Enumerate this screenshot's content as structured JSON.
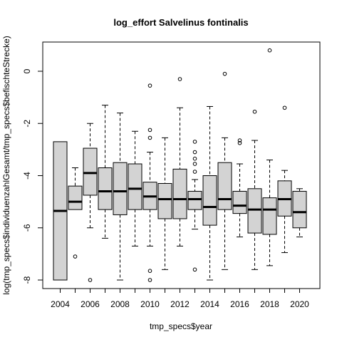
{
  "chart_data": {
    "type": "boxplot",
    "title": "log_effort Salvelinus fontinalis",
    "xlabel": "tmp_specs$year",
    "ylabel": "log(tmp_specs$individuenzahlGesamt/tmp_specs$befischteStrecke)",
    "ylim": [
      -8.4,
      1.1
    ],
    "y_ticks": [
      0,
      -2,
      -4,
      -6,
      -8
    ],
    "x_tick_labels": [
      "2004",
      "2006",
      "2008",
      "2010",
      "2012",
      "2014",
      "2016",
      "2018",
      "2020"
    ],
    "grid": false,
    "box_fill": "#d3d3d3",
    "categories": [
      "2004",
      "2005",
      "2006",
      "2007",
      "2008",
      "2009",
      "2010",
      "2011",
      "2012",
      "2013",
      "2014",
      "2015",
      "2016",
      "2017",
      "2018",
      "2019",
      "2020"
    ],
    "boxes": [
      {
        "year": "2004",
        "lower_whisker": -8.0,
        "q1": -8.0,
        "median": -5.35,
        "q3": -2.7,
        "upper_whisker": -2.7,
        "outliers": []
      },
      {
        "year": "2005",
        "lower_whisker": -5.3,
        "q1": -5.3,
        "median": -5.0,
        "q3": -4.4,
        "upper_whisker": -3.7,
        "outliers": [
          -7.1
        ]
      },
      {
        "year": "2006",
        "lower_whisker": -6.0,
        "q1": -4.75,
        "median": -3.9,
        "q3": -2.95,
        "upper_whisker": -2.0,
        "outliers": [
          -8.0
        ]
      },
      {
        "year": "2007",
        "lower_whisker": -6.4,
        "q1": -5.3,
        "median": -4.6,
        "q3": -3.7,
        "upper_whisker": -1.3,
        "outliers": []
      },
      {
        "year": "2008",
        "lower_whisker": -8.0,
        "q1": -5.5,
        "median": -4.6,
        "q3": -3.5,
        "upper_whisker": -1.6,
        "outliers": []
      },
      {
        "year": "2009",
        "lower_whisker": -6.7,
        "q1": -5.3,
        "median": -4.5,
        "q3": -3.55,
        "upper_whisker": -2.3,
        "outliers": []
      },
      {
        "year": "2010",
        "lower_whisker": -6.7,
        "q1": -5.3,
        "median": -4.8,
        "q3": -4.25,
        "upper_whisker": -3.1,
        "outliers": [
          -0.55,
          -2.25,
          -2.55,
          -7.65,
          -8.0
        ]
      },
      {
        "year": "2011",
        "lower_whisker": -7.6,
        "q1": -5.65,
        "median": -4.9,
        "q3": -4.3,
        "upper_whisker": -2.55,
        "outliers": []
      },
      {
        "year": "2012",
        "lower_whisker": -6.7,
        "q1": -5.65,
        "median": -4.9,
        "q3": -3.75,
        "upper_whisker": -1.4,
        "outliers": [
          -0.3
        ]
      },
      {
        "year": "2013",
        "lower_whisker": -6.05,
        "q1": -5.3,
        "median": -4.9,
        "q3": -4.6,
        "upper_whisker": -4.15,
        "outliers": [
          -2.7,
          -3.1,
          -3.35,
          -3.55,
          -3.85,
          -7.6
        ]
      },
      {
        "year": "2014",
        "lower_whisker": -8.0,
        "q1": -5.9,
        "median": -5.2,
        "q3": -4.0,
        "upper_whisker": -1.35,
        "outliers": []
      },
      {
        "year": "2015",
        "lower_whisker": -7.6,
        "q1": -5.3,
        "median": -4.9,
        "q3": -3.5,
        "upper_whisker": -2.55,
        "outliers": [
          -0.1
        ]
      },
      {
        "year": "2016",
        "lower_whisker": -6.35,
        "q1": -5.45,
        "median": -5.15,
        "q3": -4.6,
        "upper_whisker": -3.55,
        "outliers": [
          -2.65,
          -2.75
        ]
      },
      {
        "year": "2017",
        "lower_whisker": -7.6,
        "q1": -6.2,
        "median": -5.3,
        "q3": -4.5,
        "upper_whisker": -2.65,
        "outliers": [
          -1.55
        ]
      },
      {
        "year": "2018",
        "lower_whisker": -7.45,
        "q1": -6.25,
        "median": -5.3,
        "q3": -4.85,
        "upper_whisker": -3.4,
        "outliers": [
          0.8
        ]
      },
      {
        "year": "2019",
        "lower_whisker": -6.95,
        "q1": -5.55,
        "median": -4.9,
        "q3": -4.2,
        "upper_whisker": -3.8,
        "outliers": [
          -1.4
        ]
      },
      {
        "year": "2020",
        "lower_whisker": -6.35,
        "q1": -6.0,
        "median": -5.4,
        "q3": -4.6,
        "upper_whisker": -4.5,
        "outliers": []
      }
    ]
  }
}
